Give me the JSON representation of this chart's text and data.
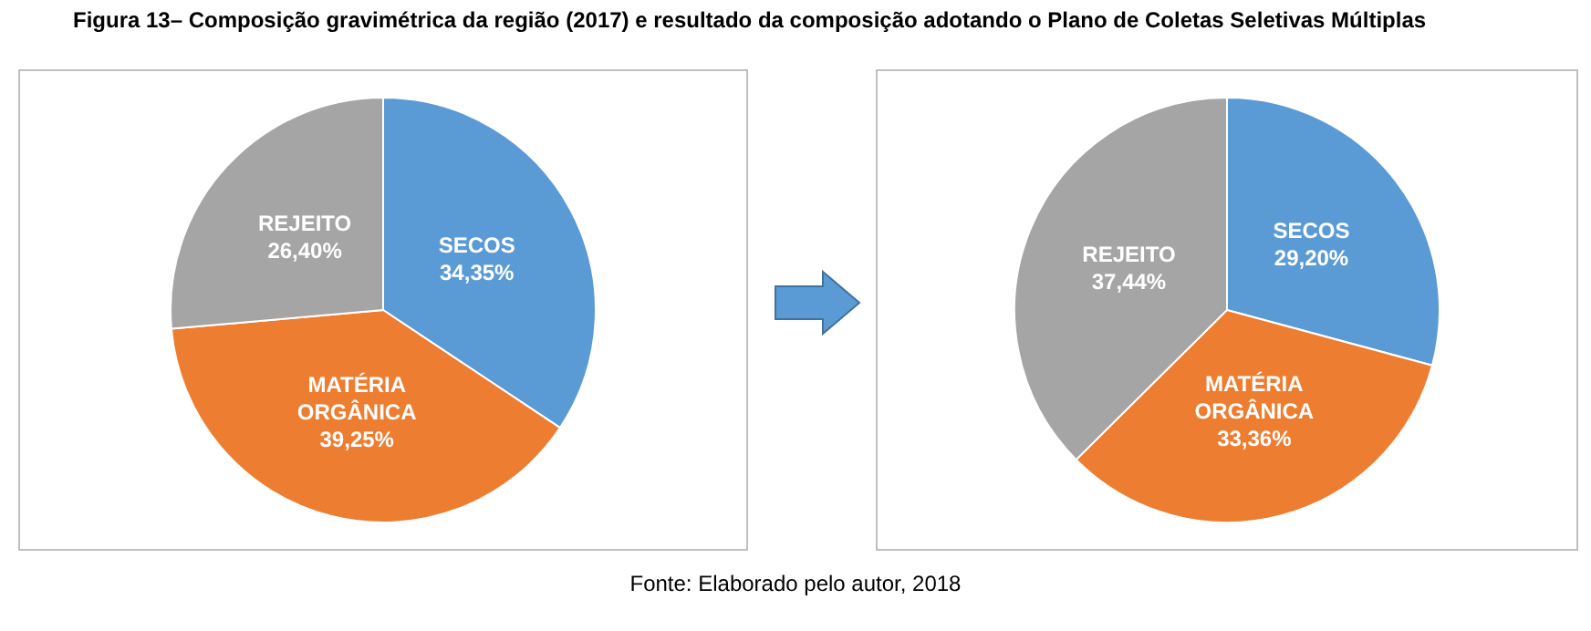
{
  "chart_data": [
    {
      "type": "pie",
      "title": "Figura 13– Composição gravimétrica da região (2017) e resultado da composição adotando o Plano de Coletas Seletivas Múltiplas",
      "annotations": [
        "Fonte: Elaborado pelo autor, 2018"
      ],
      "categories": [
        "SECOS",
        "MATÉRIA ORGÂNICA",
        "REJEITO"
      ],
      "values": [
        34.35,
        39.25,
        26.4
      ],
      "value_labels": [
        "34,35%",
        "39,25%",
        "26,40%"
      ],
      "colors": [
        "#5b9bd5",
        "#ed7d31",
        "#a5a5a5"
      ],
      "legend": false
    },
    {
      "type": "pie",
      "categories": [
        "SECOS",
        "MATÉRIA ORGÂNICA",
        "REJEITO"
      ],
      "values": [
        29.2,
        33.36,
        37.44
      ],
      "value_labels": [
        "29,20%",
        "33,36%",
        "37,44%"
      ],
      "colors": [
        "#5b9bd5",
        "#ed7d31",
        "#a5a5a5"
      ],
      "legend": false
    }
  ]
}
